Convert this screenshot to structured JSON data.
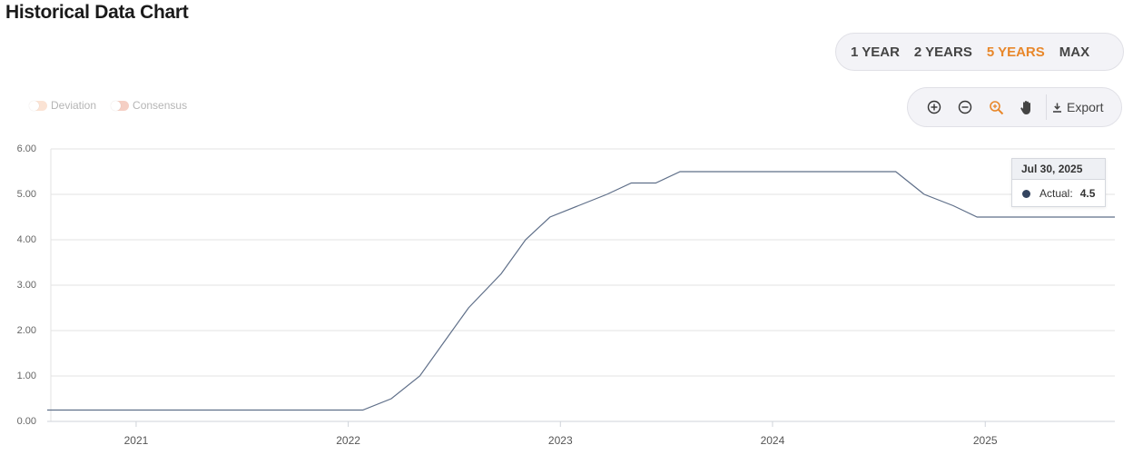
{
  "header": {
    "title": "Historical Data Chart"
  },
  "range_buttons": [
    {
      "label": "1 YEAR",
      "active": false
    },
    {
      "label": "2 YEARS",
      "active": false
    },
    {
      "label": "5 YEARS",
      "active": true
    },
    {
      "label": "MAX",
      "active": false
    }
  ],
  "legend": [
    {
      "label": "Deviation",
      "color": "#fbe3d4"
    },
    {
      "label": "Consensus",
      "color": "#f5cfc4"
    }
  ],
  "toolbar": {
    "export_label": "Export"
  },
  "tooltip": {
    "date": "Jul 30, 2025",
    "series": "Actual:",
    "value": "4.5"
  },
  "colors": {
    "line": "#5f6f89",
    "accent": "#e8872a",
    "grid": "#e3e3e3"
  },
  "chart_data": {
    "type": "line",
    "title": "",
    "xlabel": "",
    "ylabel": "",
    "ylim": [
      0,
      6
    ],
    "xlim": [
      "2020-08-01",
      "2025-08-12"
    ],
    "y_ticks": [
      "0.00",
      "1.00",
      "2.00",
      "3.00",
      "4.00",
      "5.00",
      "6.00"
    ],
    "x_ticks": [
      "2021",
      "2022",
      "2023",
      "2024",
      "2025"
    ],
    "grid": true,
    "series": [
      {
        "name": "Actual",
        "points": [
          [
            "2020-08-01",
            0.25
          ],
          [
            "2021-01-27",
            0.25
          ],
          [
            "2021-07-28",
            0.25
          ],
          [
            "2022-01-26",
            0.25
          ],
          [
            "2022-03-16",
            0.5
          ],
          [
            "2022-05-04",
            1.0
          ],
          [
            "2022-06-15",
            1.75
          ],
          [
            "2022-07-27",
            2.5
          ],
          [
            "2022-09-21",
            3.25
          ],
          [
            "2022-11-02",
            4.0
          ],
          [
            "2022-12-14",
            4.5
          ],
          [
            "2023-02-01",
            4.75
          ],
          [
            "2023-03-22",
            5.0
          ],
          [
            "2023-05-03",
            5.25
          ],
          [
            "2023-06-14",
            5.25
          ],
          [
            "2023-07-26",
            5.5
          ],
          [
            "2024-07-31",
            5.5
          ],
          [
            "2024-09-18",
            5.0
          ],
          [
            "2024-11-07",
            4.75
          ],
          [
            "2024-12-18",
            4.5
          ],
          [
            "2025-08-12",
            4.5
          ]
        ]
      }
    ]
  }
}
